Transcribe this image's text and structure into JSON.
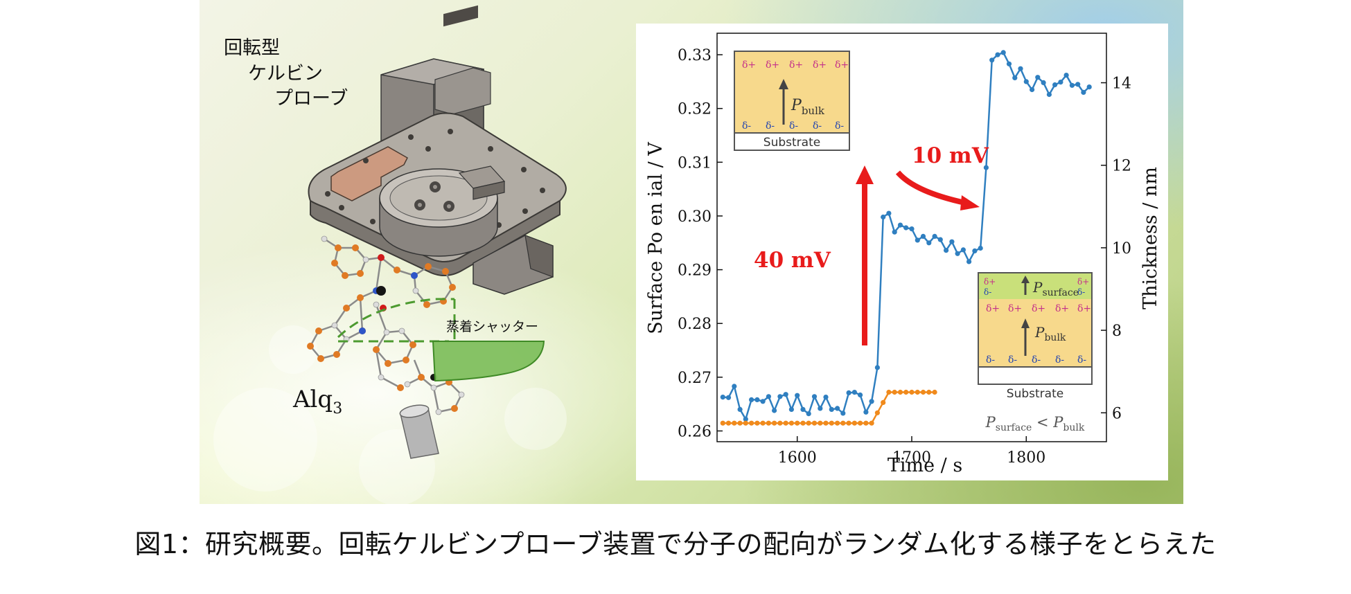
{
  "illustration": {
    "probe_label_lines": [
      "回転型",
      "ケルビン",
      "プローブ"
    ],
    "shutter_label": "蒸着シャッター",
    "molecule_label": "Alq",
    "molecule_subscript": "3"
  },
  "insets": {
    "top": {
      "positive_charge": "δ+",
      "negative_charge": "δ-",
      "polarization_symbol": "P",
      "polarization_subscript": "bulk",
      "substrate_label": "Substrate"
    },
    "bottom": {
      "positive_charge": "δ+",
      "negative_charge": "δ-",
      "surface_symbol": "P",
      "surface_subscript": "surface",
      "bulk_symbol": "P",
      "bulk_subscript": "bulk",
      "substrate_label": "Substrate",
      "relation_lhs": "P",
      "relation_lhs_sub": "surface",
      "relation_op": " < ",
      "relation_rhs": "P",
      "relation_rhs_sub": "bulk"
    }
  },
  "annotations": {
    "step1": "40 mV",
    "step2": "10 mV"
  },
  "colors": {
    "potential_series": "#2f7fc0",
    "thickness_series": "#f08a1c",
    "arrow": "#e81b1b",
    "inset_fill": "#f7d98c",
    "inset_surface_fill": "#c9e07a",
    "delta_plus": "#c4308a",
    "delta_minus": "#2446b0"
  },
  "chart_data": {
    "type": "line",
    "xlabel": "Time / s",
    "ylabel": "Surface Po en ial / V",
    "y2label": "Thickness / nm",
    "xlim": [
      1530,
      1870
    ],
    "ylim": [
      0.258,
      0.334
    ],
    "y2lim": [
      5.3,
      15.2
    ],
    "xticks": [
      1600,
      1700,
      1800
    ],
    "yticks": [
      0.26,
      0.27,
      0.28,
      0.29,
      0.3,
      0.31,
      0.32,
      0.33
    ],
    "y2ticks": [
      6,
      8,
      10,
      12,
      14
    ],
    "xtick_labels": [
      "1600",
      "1700",
      "1800"
    ],
    "ytick_labels": [
      "0.26",
      "0.27",
      "0.28",
      "0.29",
      "0.30",
      "0.31",
      "0.32",
      "0.33"
    ],
    "y2tick_labels": [
      "6",
      "8",
      "10",
      "12",
      "14"
    ],
    "series": [
      {
        "axis": "left",
        "x": [
          1535,
          1540,
          1545,
          1550,
          1555,
          1560,
          1565,
          1570,
          1575,
          1580,
          1585,
          1590,
          1595,
          1600,
          1605,
          1610,
          1615,
          1620,
          1625,
          1630,
          1635,
          1640,
          1645,
          1650,
          1655,
          1660,
          1665,
          1670,
          1675,
          1680,
          1685,
          1690,
          1695,
          1700,
          1705,
          1710,
          1715,
          1720,
          1725,
          1730,
          1735,
          1740,
          1745,
          1750,
          1755,
          1760,
          1765,
          1770,
          1775,
          1780,
          1785,
          1790,
          1795,
          1800,
          1805,
          1810,
          1815,
          1820,
          1825,
          1830,
          1835,
          1840,
          1845,
          1850,
          1855
        ],
        "y": [
          0.2663,
          0.2662,
          0.2683,
          0.264,
          0.2622,
          0.2658,
          0.2658,
          0.2655,
          0.2664,
          0.2638,
          0.2664,
          0.2668,
          0.264,
          0.2666,
          0.264,
          0.2632,
          0.2664,
          0.2642,
          0.2663,
          0.264,
          0.2642,
          0.2633,
          0.2671,
          0.2672,
          0.2667,
          0.2635,
          0.2655,
          0.2718,
          0.2998,
          0.3005,
          0.297,
          0.2983,
          0.2978,
          0.2976,
          0.2955,
          0.2962,
          0.295,
          0.2962,
          0.2956,
          0.2936,
          0.2952,
          0.293,
          0.2937,
          0.2915,
          0.2935,
          0.294,
          0.309,
          0.329,
          0.33,
          0.3304,
          0.3283,
          0.3257,
          0.3274,
          0.325,
          0.3235,
          0.3258,
          0.3248,
          0.3226,
          0.3244,
          0.3249,
          0.3262,
          0.3243,
          0.3245,
          0.323,
          0.324
        ]
      },
      {
        "axis": "right",
        "x": [
          1535,
          1540,
          1545,
          1550,
          1555,
          1560,
          1565,
          1570,
          1575,
          1580,
          1585,
          1590,
          1595,
          1600,
          1605,
          1610,
          1615,
          1620,
          1625,
          1630,
          1635,
          1640,
          1645,
          1650,
          1655,
          1660,
          1665,
          1670,
          1675,
          1680,
          1685,
          1690,
          1695,
          1700,
          1705,
          1710,
          1715,
          1720
        ],
        "y": [
          5.75,
          5.75,
          5.75,
          5.75,
          5.75,
          5.75,
          5.75,
          5.75,
          5.75,
          5.75,
          5.75,
          5.75,
          5.75,
          5.75,
          5.75,
          5.75,
          5.75,
          5.75,
          5.75,
          5.75,
          5.75,
          5.75,
          5.75,
          5.75,
          5.75,
          5.75,
          5.75,
          6.0,
          6.25,
          6.5,
          6.5,
          6.5,
          6.5,
          6.5,
          6.5,
          6.5,
          6.5,
          6.5
        ]
      }
    ]
  },
  "caption": "図1：研究概要。回転ケルビンプローブ装置で分子の配向がランダム化する様子をとらえた"
}
